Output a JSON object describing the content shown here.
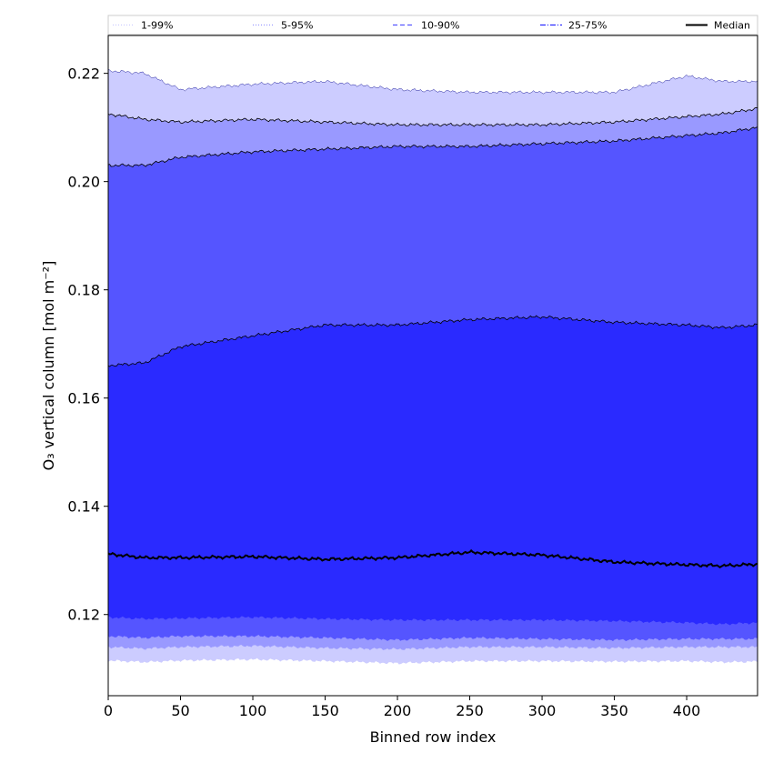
{
  "chart_data": {
    "type": "area",
    "xlabel": "Binned row index",
    "ylabel": "O₃ vertical column [mol m⁻²]",
    "xlim": [
      0,
      449
    ],
    "ylim": [
      0.105,
      0.227
    ],
    "x_ticks": [
      0,
      50,
      100,
      150,
      200,
      250,
      300,
      350,
      400
    ],
    "y_ticks": [
      0.12,
      0.14,
      0.16,
      0.18,
      0.2,
      0.22
    ],
    "y_tick_labels": [
      "0.12",
      "0.14",
      "0.16",
      "0.18",
      "0.20",
      "0.22"
    ],
    "x": [
      0,
      25,
      50,
      100,
      150,
      200,
      250,
      300,
      350,
      400,
      425,
      449
    ],
    "grid": false,
    "legend_position": "top",
    "series": [
      {
        "name": "1-99%",
        "color": "#ccccff",
        "style": "dotted",
        "lower": [
          0.1115,
          0.1112,
          0.1115,
          0.1117,
          0.1114,
          0.111,
          0.1114,
          0.1114,
          0.1113,
          0.1114,
          0.1112,
          0.1113
        ],
        "upper": [
          0.2205,
          0.22,
          0.217,
          0.218,
          0.2185,
          0.217,
          0.2165,
          0.2165,
          0.2165,
          0.2195,
          0.2185,
          0.2185
        ]
      },
      {
        "name": "5-95%",
        "color": "#9999ff",
        "style": "dotted",
        "lower": [
          0.114,
          0.1137,
          0.114,
          0.1142,
          0.1138,
          0.1136,
          0.114,
          0.114,
          0.1138,
          0.114,
          0.114,
          0.114
        ],
        "upper": [
          0.2125,
          0.2115,
          0.211,
          0.2115,
          0.211,
          0.2105,
          0.2105,
          0.2105,
          0.211,
          0.212,
          0.2125,
          0.2135
        ]
      },
      {
        "name": "10-90%",
        "color": "#5555ff",
        "style": "dashed",
        "lower": [
          0.116,
          0.1157,
          0.116,
          0.116,
          0.1157,
          0.1153,
          0.1157,
          0.1155,
          0.1153,
          0.1155,
          0.1155,
          0.1155
        ],
        "upper": [
          0.203,
          0.203,
          0.2045,
          0.2055,
          0.206,
          0.2065,
          0.2065,
          0.207,
          0.2075,
          0.2085,
          0.209,
          0.21
        ]
      },
      {
        "name": "25-75%",
        "color": "#2a2aff",
        "style": "dashdot",
        "lower": [
          0.1195,
          0.1192,
          0.1193,
          0.1195,
          0.1192,
          0.119,
          0.119,
          0.119,
          0.1188,
          0.1185,
          0.1182,
          0.1185
        ],
        "upper": [
          0.166,
          0.1665,
          0.1695,
          0.1715,
          0.1735,
          0.1735,
          0.1745,
          0.175,
          0.174,
          0.1735,
          0.173,
          0.1735
        ]
      },
      {
        "name": "Median",
        "color": "#000000",
        "style": "solid",
        "values": [
          0.1312,
          0.1305,
          0.1305,
          0.1307,
          0.1302,
          0.1305,
          0.1315,
          0.131,
          0.1297,
          0.1292,
          0.129,
          0.1293
        ]
      }
    ]
  }
}
